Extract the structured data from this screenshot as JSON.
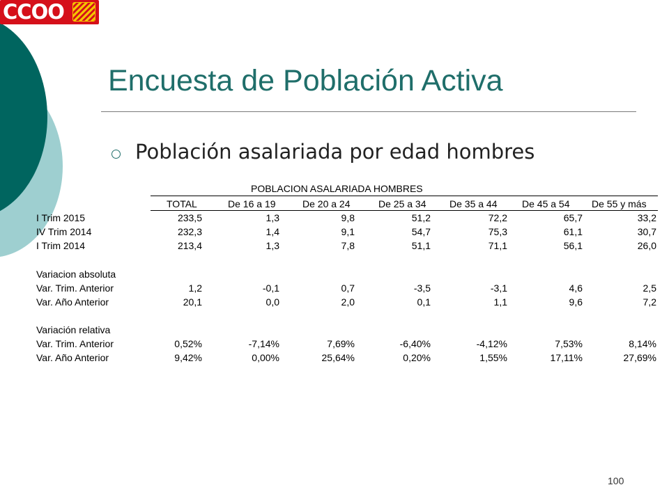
{
  "logo": {
    "text": "CCOO"
  },
  "title": "Encuesta de Población Activa",
  "bullet": "Población asalariada por edad hombres",
  "table": {
    "title": "POBLACION ASALARIADA HOMBRES",
    "columns": [
      "TOTAL",
      "De 16 a 19",
      "De 20 a 24",
      "De 25 a 34",
      "De 35 a 44",
      "De 45 a 54",
      "De 55 y más"
    ],
    "rows": [
      {
        "label": "I Trim 2015",
        "cells": [
          "233,5",
          "1,3",
          "9,8",
          "51,2",
          "72,2",
          "65,7",
          "33,2"
        ]
      },
      {
        "label": "IV Trim 2014",
        "cells": [
          "232,3",
          "1,4",
          "9,1",
          "54,7",
          "75,3",
          "61,1",
          "30,7"
        ]
      },
      {
        "label": "I Trim 2014",
        "cells": [
          "213,4",
          "1,3",
          "7,8",
          "51,1",
          "71,1",
          "56,1",
          "26,0"
        ]
      },
      {
        "label": "Variacion absoluta",
        "cells": []
      },
      {
        "label": "Var. Trim. Anterior",
        "cells": [
          "1,2",
          "-0,1",
          "0,7",
          "-3,5",
          "-3,1",
          "4,6",
          "2,5"
        ]
      },
      {
        "label": "Var. Año Anterior",
        "cells": [
          "20,1",
          "0,0",
          "2,0",
          "0,1",
          "1,1",
          "9,6",
          "7,2"
        ]
      },
      {
        "label": "Variación relativa",
        "cells": []
      },
      {
        "label": "Var. Trim. Anterior",
        "cells": [
          "0,52%",
          "-7,14%",
          "7,69%",
          "-6,40%",
          "-4,12%",
          "7,53%",
          "8,14%"
        ]
      },
      {
        "label": "Var. Año Anterior",
        "cells": [
          "9,42%",
          "0,00%",
          "25,64%",
          "0,20%",
          "1,55%",
          "17,11%",
          "27,69%"
        ]
      }
    ]
  },
  "page_number": "100"
}
